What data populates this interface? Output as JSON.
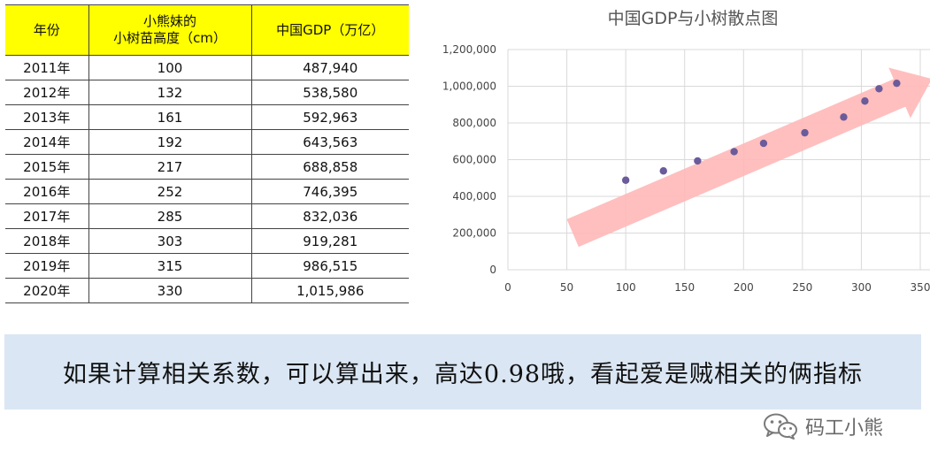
{
  "table": {
    "headers": [
      "年份",
      "小熊妹的\n小树苗高度（cm）",
      "中国GDP（万亿）"
    ],
    "rows": [
      [
        "2011年",
        "100",
        "487,940"
      ],
      [
        "2012年",
        "132",
        "538,580"
      ],
      [
        "2013年",
        "161",
        "592,963"
      ],
      [
        "2014年",
        "192",
        "643,563"
      ],
      [
        "2015年",
        "217",
        "688,858"
      ],
      [
        "2016年",
        "252",
        "746,395"
      ],
      [
        "2017年",
        "285",
        "832,036"
      ],
      [
        "2018年",
        "303",
        "919,281"
      ],
      [
        "2019年",
        "315",
        "986,515"
      ],
      [
        "2020年",
        "330",
        "1,015,986"
      ]
    ],
    "header_color": "#ffff00"
  },
  "chart_data": {
    "type": "scatter",
    "title": "中国GDP与小树散点图",
    "x": [
      100,
      132,
      161,
      192,
      217,
      252,
      285,
      303,
      315,
      330
    ],
    "y": [
      487940,
      538580,
      592963,
      643563,
      688858,
      746395,
      832036,
      919281,
      986515,
      1015986
    ],
    "xlim": [
      0,
      350
    ],
    "ylim": [
      0,
      1200000
    ],
    "x_ticks": [
      0,
      50,
      100,
      150,
      200,
      250,
      300,
      350
    ],
    "x_tick_labels": [
      "0",
      "50",
      "100",
      "150",
      "200",
      "250",
      "300",
      "350"
    ],
    "y_ticks": [
      0,
      200000,
      400000,
      600000,
      800000,
      1000000,
      1200000
    ],
    "y_tick_labels": [
      "0",
      "200,000",
      "400,000",
      "600,000",
      "800,000",
      "1,000,000",
      "1,200,000"
    ],
    "grid": true,
    "point_color": "#6b5b9a",
    "trend_arrow_color": "#ffb8b8",
    "trend_arrow_from": [
      55,
      200000
    ],
    "trend_arrow_to": [
      360,
      1040000
    ]
  },
  "caption": {
    "text": "如果计算相关系数，可以算出来，高达0.98哦，看起爱是贼相关的俩指标",
    "background": "#dae6f3"
  },
  "watermark": {
    "text": "码工小熊",
    "icon": "wechat-icon"
  }
}
